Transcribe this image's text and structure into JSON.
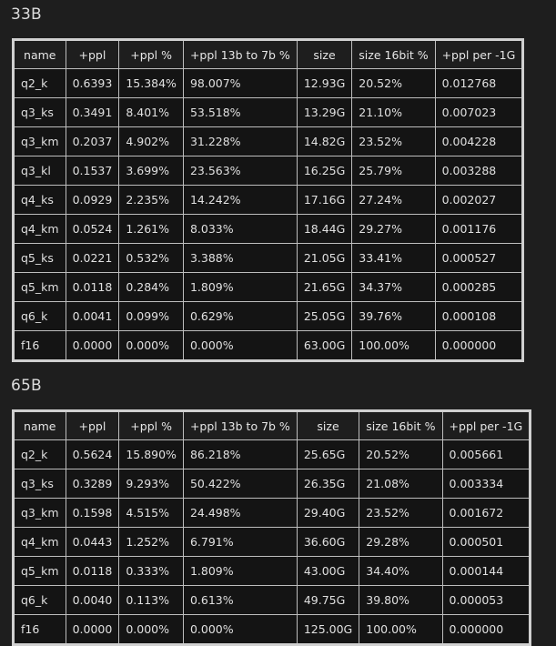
{
  "sections": [
    {
      "title": "33B",
      "columns": [
        "name",
        "+ppl",
        "+ppl %",
        "+ppl 13b to 7b %",
        "size",
        "size 16bit %",
        "+ppl per -1G"
      ],
      "rows": [
        [
          "q2_k",
          "0.6393",
          "15.384%",
          "98.007%",
          "12.93G",
          "20.52%",
          "0.012768"
        ],
        [
          "q3_ks",
          "0.3491",
          "8.401%",
          "53.518%",
          "13.29G",
          "21.10%",
          "0.007023"
        ],
        [
          "q3_km",
          "0.2037",
          "4.902%",
          "31.228%",
          "14.82G",
          "23.52%",
          "0.004228"
        ],
        [
          "q3_kl",
          "0.1537",
          "3.699%",
          "23.563%",
          "16.25G",
          "25.79%",
          "0.003288"
        ],
        [
          "q4_ks",
          "0.0929",
          "2.235%",
          "14.242%",
          "17.16G",
          "27.24%",
          "0.002027"
        ],
        [
          "q4_km",
          "0.0524",
          "1.261%",
          "8.033%",
          "18.44G",
          "29.27%",
          "0.001176"
        ],
        [
          "q5_ks",
          "0.0221",
          "0.532%",
          "3.388%",
          "21.05G",
          "33.41%",
          "0.000527"
        ],
        [
          "q5_km",
          "0.0118",
          "0.284%",
          "1.809%",
          "21.65G",
          "34.37%",
          "0.000285"
        ],
        [
          "q6_k",
          "0.0041",
          "0.099%",
          "0.629%",
          "25.05G",
          "39.76%",
          "0.000108"
        ],
        [
          "f16",
          "0.0000",
          "0.000%",
          "0.000%",
          "63.00G",
          "100.00%",
          "0.000000"
        ]
      ]
    },
    {
      "title": "65B",
      "columns": [
        "name",
        "+ppl",
        "+ppl %",
        "+ppl 13b to 7b %",
        "size",
        "size 16bit %",
        "+ppl per -1G"
      ],
      "rows": [
        [
          "q2_k",
          "0.5624",
          "15.890%",
          "86.218%",
          "25.65G",
          "20.52%",
          "0.005661"
        ],
        [
          "q3_ks",
          "0.3289",
          "9.293%",
          "50.422%",
          "26.35G",
          "21.08%",
          "0.003334"
        ],
        [
          "q3_km",
          "0.1598",
          "4.515%",
          "24.498%",
          "29.40G",
          "23.52%",
          "0.001672"
        ],
        [
          "q4_km",
          "0.0443",
          "1.252%",
          "6.791%",
          "36.60G",
          "29.28%",
          "0.000501"
        ],
        [
          "q5_km",
          "0.0118",
          "0.333%",
          "1.809%",
          "43.00G",
          "34.40%",
          "0.000144"
        ],
        [
          "q6_k",
          "0.0040",
          "0.113%",
          "0.613%",
          "49.75G",
          "39.80%",
          "0.000053"
        ],
        [
          "f16",
          "0.0000",
          "0.000%",
          "0.000%",
          "125.00G",
          "100.00%",
          "0.000000"
        ]
      ]
    }
  ]
}
